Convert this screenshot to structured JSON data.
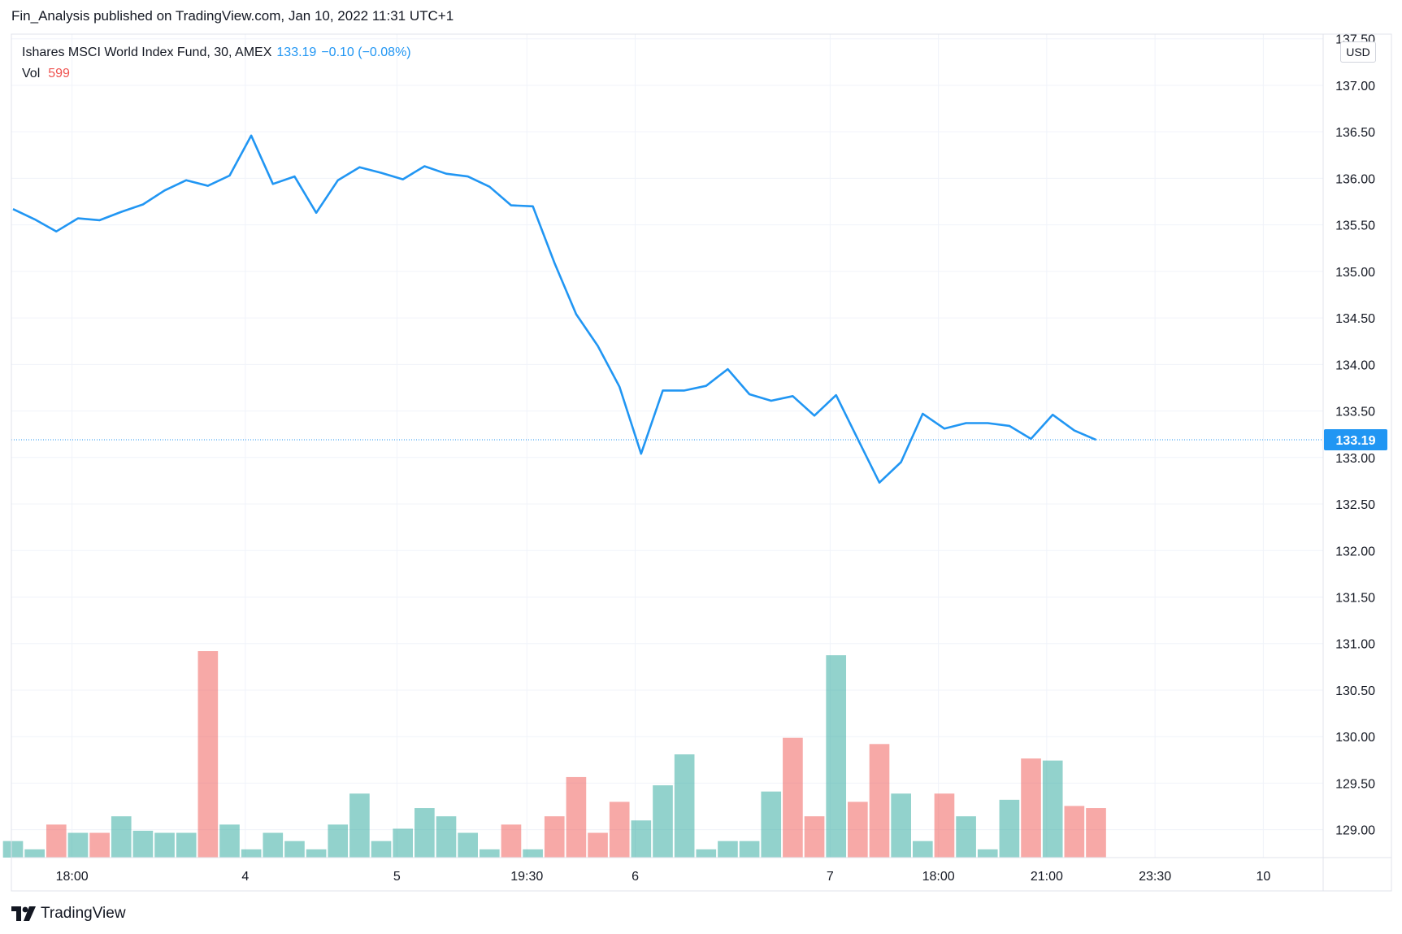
{
  "header": {
    "text": "Fin_Analysis published on TradingView.com, Jan 10, 2022 11:31 UTC+1"
  },
  "legend": {
    "symbol": "Ishares MSCI World Index Fund, 30, AMEX",
    "price": "133.19",
    "change": "−0.10 (−0.08%)",
    "vol_label": "Vol",
    "vol_value": "599"
  },
  "currency": "USD",
  "footer": {
    "brand": "TradingView"
  },
  "colors": {
    "line": "#2196f3",
    "volume_up": "#26a69a",
    "volume_down": "#ef5350",
    "grid": "#f0f3fa",
    "axis_text": "#131722",
    "price_label_bg": "#2196f3"
  },
  "chart_data": {
    "type": "line",
    "y_axis": {
      "ylim": [
        128.7,
        137.55
      ],
      "ticks": [
        "137.50",
        "137.00",
        "136.50",
        "136.00",
        "135.50",
        "135.00",
        "134.50",
        "134.00",
        "133.50",
        "133.00",
        "132.50",
        "132.00",
        "131.50",
        "131.00",
        "130.50",
        "130.00",
        "129.50",
        "129.00"
      ]
    },
    "x_axis": {
      "ticks": [
        {
          "label": "18:00",
          "bar": 3
        },
        {
          "label": "4",
          "bar": 11
        },
        {
          "label": "5",
          "bar": 18
        },
        {
          "label": "19:30",
          "bar": 24
        },
        {
          "label": "6",
          "bar": 29
        },
        {
          "label": "7",
          "bar": 38
        },
        {
          "label": "18:00",
          "bar": 43
        },
        {
          "label": "21:00",
          "bar": 48
        },
        {
          "label": "23:30",
          "bar": 53
        },
        {
          "label": "10",
          "bar": 58
        }
      ]
    },
    "last_price": {
      "value": 133.19,
      "label": "133.19"
    },
    "series": [
      {
        "values": [
          135.67,
          135.56,
          135.43,
          135.57,
          135.55,
          135.64,
          135.72,
          135.87,
          135.98,
          135.92,
          136.03,
          136.46,
          135.94,
          136.02,
          135.63,
          135.98,
          136.12,
          136.06,
          135.99,
          136.13,
          136.05,
          136.02,
          135.91,
          135.71,
          135.7,
          135.09,
          134.54,
          134.2,
          133.76,
          133.04,
          133.72,
          133.72,
          133.77,
          133.95,
          133.68,
          133.61,
          133.66,
          133.45,
          133.67,
          133.2,
          132.73,
          132.95,
          133.47,
          133.31,
          133.37,
          133.37,
          133.34,
          133.2,
          133.46,
          133.29,
          133.19
        ]
      }
    ],
    "volume": {
      "directions": [
        "up",
        "up",
        "down",
        "up",
        "down",
        "up",
        "up",
        "up",
        "up",
        "down",
        "up",
        "up",
        "up",
        "up",
        "up",
        "up",
        "up",
        "up",
        "up",
        "up",
        "up",
        "up",
        "up",
        "down",
        "up",
        "down",
        "down",
        "down",
        "down",
        "up",
        "up",
        "up",
        "up",
        "up",
        "up",
        "up",
        "down",
        "down",
        "up",
        "down",
        "down",
        "up",
        "up",
        "down",
        "up",
        "up",
        "up",
        "down",
        "up",
        "down",
        "down"
      ],
      "values": [
        0.08,
        0.04,
        0.16,
        0.12,
        0.12,
        0.2,
        0.13,
        0.12,
        0.12,
        1.0,
        0.16,
        0.04,
        0.12,
        0.08,
        0.04,
        0.16,
        0.31,
        0.08,
        0.14,
        0.24,
        0.2,
        0.12,
        0.04,
        0.16,
        0.04,
        0.2,
        0.39,
        0.12,
        0.27,
        0.18,
        0.35,
        0.5,
        0.04,
        0.08,
        0.08,
        0.32,
        0.58,
        0.2,
        0.98,
        0.27,
        0.55,
        0.31,
        0.08,
        0.31,
        0.2,
        0.04,
        0.28,
        0.48,
        0.47,
        0.25,
        0.24
      ]
    }
  }
}
